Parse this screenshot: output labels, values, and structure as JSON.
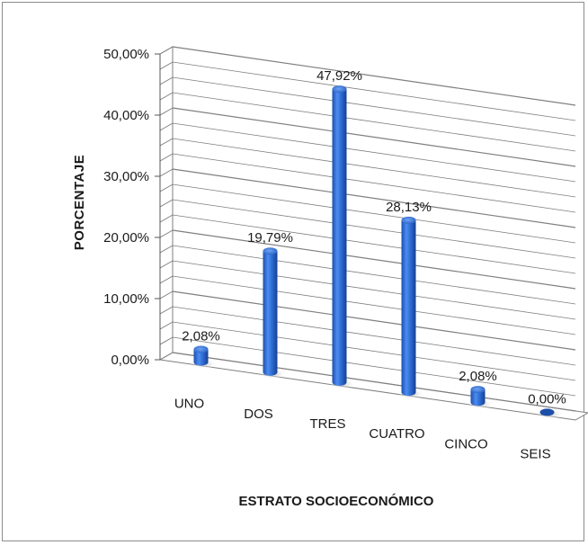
{
  "chart_data": {
    "type": "bar",
    "categories": [
      "UNO",
      "DOS",
      "TRES",
      "CUATRO",
      "CINCO",
      "SEIS"
    ],
    "values": [
      2.08,
      19.79,
      47.92,
      28.13,
      2.08,
      0.0
    ],
    "data_labels": [
      "2,08%",
      "19,79%",
      "47,92%",
      "28,13%",
      "2,08%",
      "0,00%"
    ],
    "ytick_labels": [
      "0,00%",
      "10,00%",
      "20,00%",
      "30,00%",
      "40,00%",
      "50,00%"
    ],
    "ylim": [
      0,
      50
    ],
    "title": "",
    "xlabel": "ESTRATO SOCIOECONÓMICO",
    "ylabel": "PORCENTAJE",
    "grid": true,
    "style": "3d-cylinder",
    "bar_color": "#2f6fd6",
    "grid_color": "#7f7f7f"
  }
}
